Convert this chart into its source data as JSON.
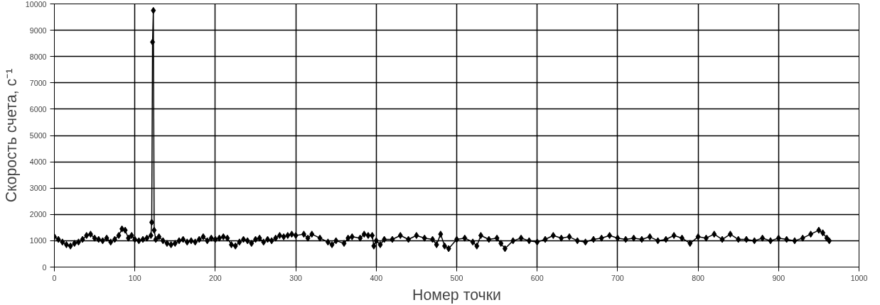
{
  "chart_data": {
    "type": "line",
    "xlabel": "Номер точки",
    "ylabel": "Скорость счета, с⁻¹",
    "xlim": [
      0,
      1000
    ],
    "ylim": [
      0,
      10000
    ],
    "xticks": [
      0,
      100,
      200,
      300,
      400,
      500,
      600,
      700,
      800,
      900,
      1000
    ],
    "yticks": [
      0,
      1000,
      2000,
      3000,
      4000,
      5000,
      6000,
      7000,
      8000,
      9000,
      10000
    ],
    "grid": true,
    "marker": "diamond",
    "line_style": "solid",
    "series": [
      {
        "color": "#000000",
        "x": [
          0,
          5,
          10,
          15,
          20,
          25,
          30,
          35,
          40,
          45,
          50,
          55,
          60,
          65,
          70,
          75,
          80,
          84,
          88,
          92,
          96,
          100,
          105,
          110,
          115,
          120,
          121,
          122,
          123,
          124,
          126,
          130,
          135,
          140,
          145,
          150,
          155,
          160,
          165,
          170,
          175,
          180,
          185,
          190,
          195,
          200,
          205,
          210,
          215,
          220,
          225,
          230,
          235,
          240,
          245,
          250,
          255,
          260,
          265,
          270,
          275,
          280,
          285,
          290,
          295,
          300,
          310,
          315,
          320,
          330,
          340,
          345,
          350,
          360,
          365,
          370,
          380,
          385,
          390,
          395,
          397,
          400,
          405,
          410,
          420,
          430,
          440,
          450,
          460,
          470,
          475,
          480,
          485,
          490,
          500,
          510,
          520,
          525,
          530,
          540,
          550,
          555,
          560,
          570,
          580,
          590,
          600,
          610,
          620,
          630,
          640,
          650,
          660,
          670,
          680,
          690,
          700,
          710,
          720,
          730,
          740,
          750,
          760,
          770,
          780,
          790,
          800,
          810,
          820,
          830,
          840,
          850,
          860,
          870,
          880,
          890,
          900,
          910,
          920,
          930,
          940,
          950,
          955,
          960,
          963
        ],
        "values": [
          1150,
          1050,
          950,
          850,
          800,
          900,
          950,
          1050,
          1200,
          1250,
          1100,
          1050,
          1000,
          1100,
          950,
          1050,
          1200,
          1450,
          1400,
          1100,
          1200,
          1050,
          1000,
          1050,
          1100,
          1200,
          1700,
          8550,
          9750,
          1400,
          1050,
          1150,
          1000,
          900,
          850,
          900,
          1000,
          1050,
          950,
          1000,
          950,
          1050,
          1150,
          1000,
          1100,
          1050,
          1100,
          1150,
          1100,
          850,
          800,
          950,
          1050,
          1000,
          900,
          1050,
          1100,
          950,
          1050,
          1000,
          1100,
          1200,
          1150,
          1200,
          1250,
          1200,
          1250,
          1100,
          1250,
          1100,
          950,
          850,
          1000,
          900,
          1100,
          1150,
          1100,
          1250,
          1200,
          1200,
          800,
          1000,
          850,
          1050,
          1050,
          1200,
          1050,
          1200,
          1100,
          1050,
          850,
          1250,
          800,
          700,
          1050,
          1100,
          950,
          800,
          1200,
          1050,
          1100,
          900,
          700,
          1000,
          1100,
          1000,
          950,
          1050,
          1200,
          1100,
          1150,
          1000,
          950,
          1050,
          1100,
          1200,
          1100,
          1050,
          1100,
          1050,
          1150,
          1000,
          1050,
          1200,
          1100,
          900,
          1150,
          1100,
          1250,
          1050,
          1250,
          1050,
          1050,
          1000,
          1100,
          1000,
          1100,
          1050,
          1000,
          1100,
          1250,
          1400,
          1300,
          1100,
          1000
        ]
      }
    ]
  }
}
